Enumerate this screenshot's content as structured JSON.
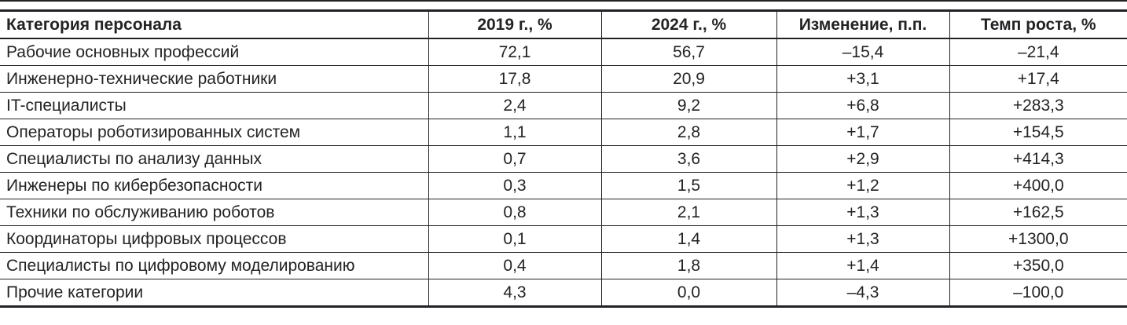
{
  "table": {
    "columns": [
      {
        "label": "Категория персонала"
      },
      {
        "label": "2019 г., %"
      },
      {
        "label": "2024 г., %"
      },
      {
        "label": "Изменение, п.п."
      },
      {
        "label": "Темп роста, %"
      }
    ],
    "rows": [
      [
        "Рабочие основных профессий",
        "72,1",
        "56,7",
        "–15,4",
        "–21,4"
      ],
      [
        "Инженерно-технические работники",
        "17,8",
        "20,9",
        "+3,1",
        "+17,4"
      ],
      [
        "IT-специалисты",
        "2,4",
        "9,2",
        "+6,8",
        "+283,3"
      ],
      [
        "Операторы роботизированных систем",
        "1,1",
        "2,8",
        "+1,7",
        "+154,5"
      ],
      [
        "Специалисты по анализу данных",
        "0,7",
        "3,6",
        "+2,9",
        "+414,3"
      ],
      [
        "Инженеры по кибербезопасности",
        "0,3",
        "1,5",
        "+1,2",
        "+400,0"
      ],
      [
        "Техники по обслуживанию роботов",
        "0,8",
        "2,1",
        "+1,3",
        "+162,5"
      ],
      [
        "Координаторы цифровых процессов",
        "0,1",
        "1,4",
        "+1,3",
        "+1300,0"
      ],
      [
        "Специалисты по цифровому моделированию",
        "0,4",
        "1,8",
        "+1,4",
        "+350,0"
      ],
      [
        "Прочие категории",
        "4,3",
        "0,0",
        "–4,3",
        "–100,0"
      ]
    ],
    "colors": {
      "rule": "#222226",
      "text": "#232326",
      "background": "#ffffff"
    }
  }
}
